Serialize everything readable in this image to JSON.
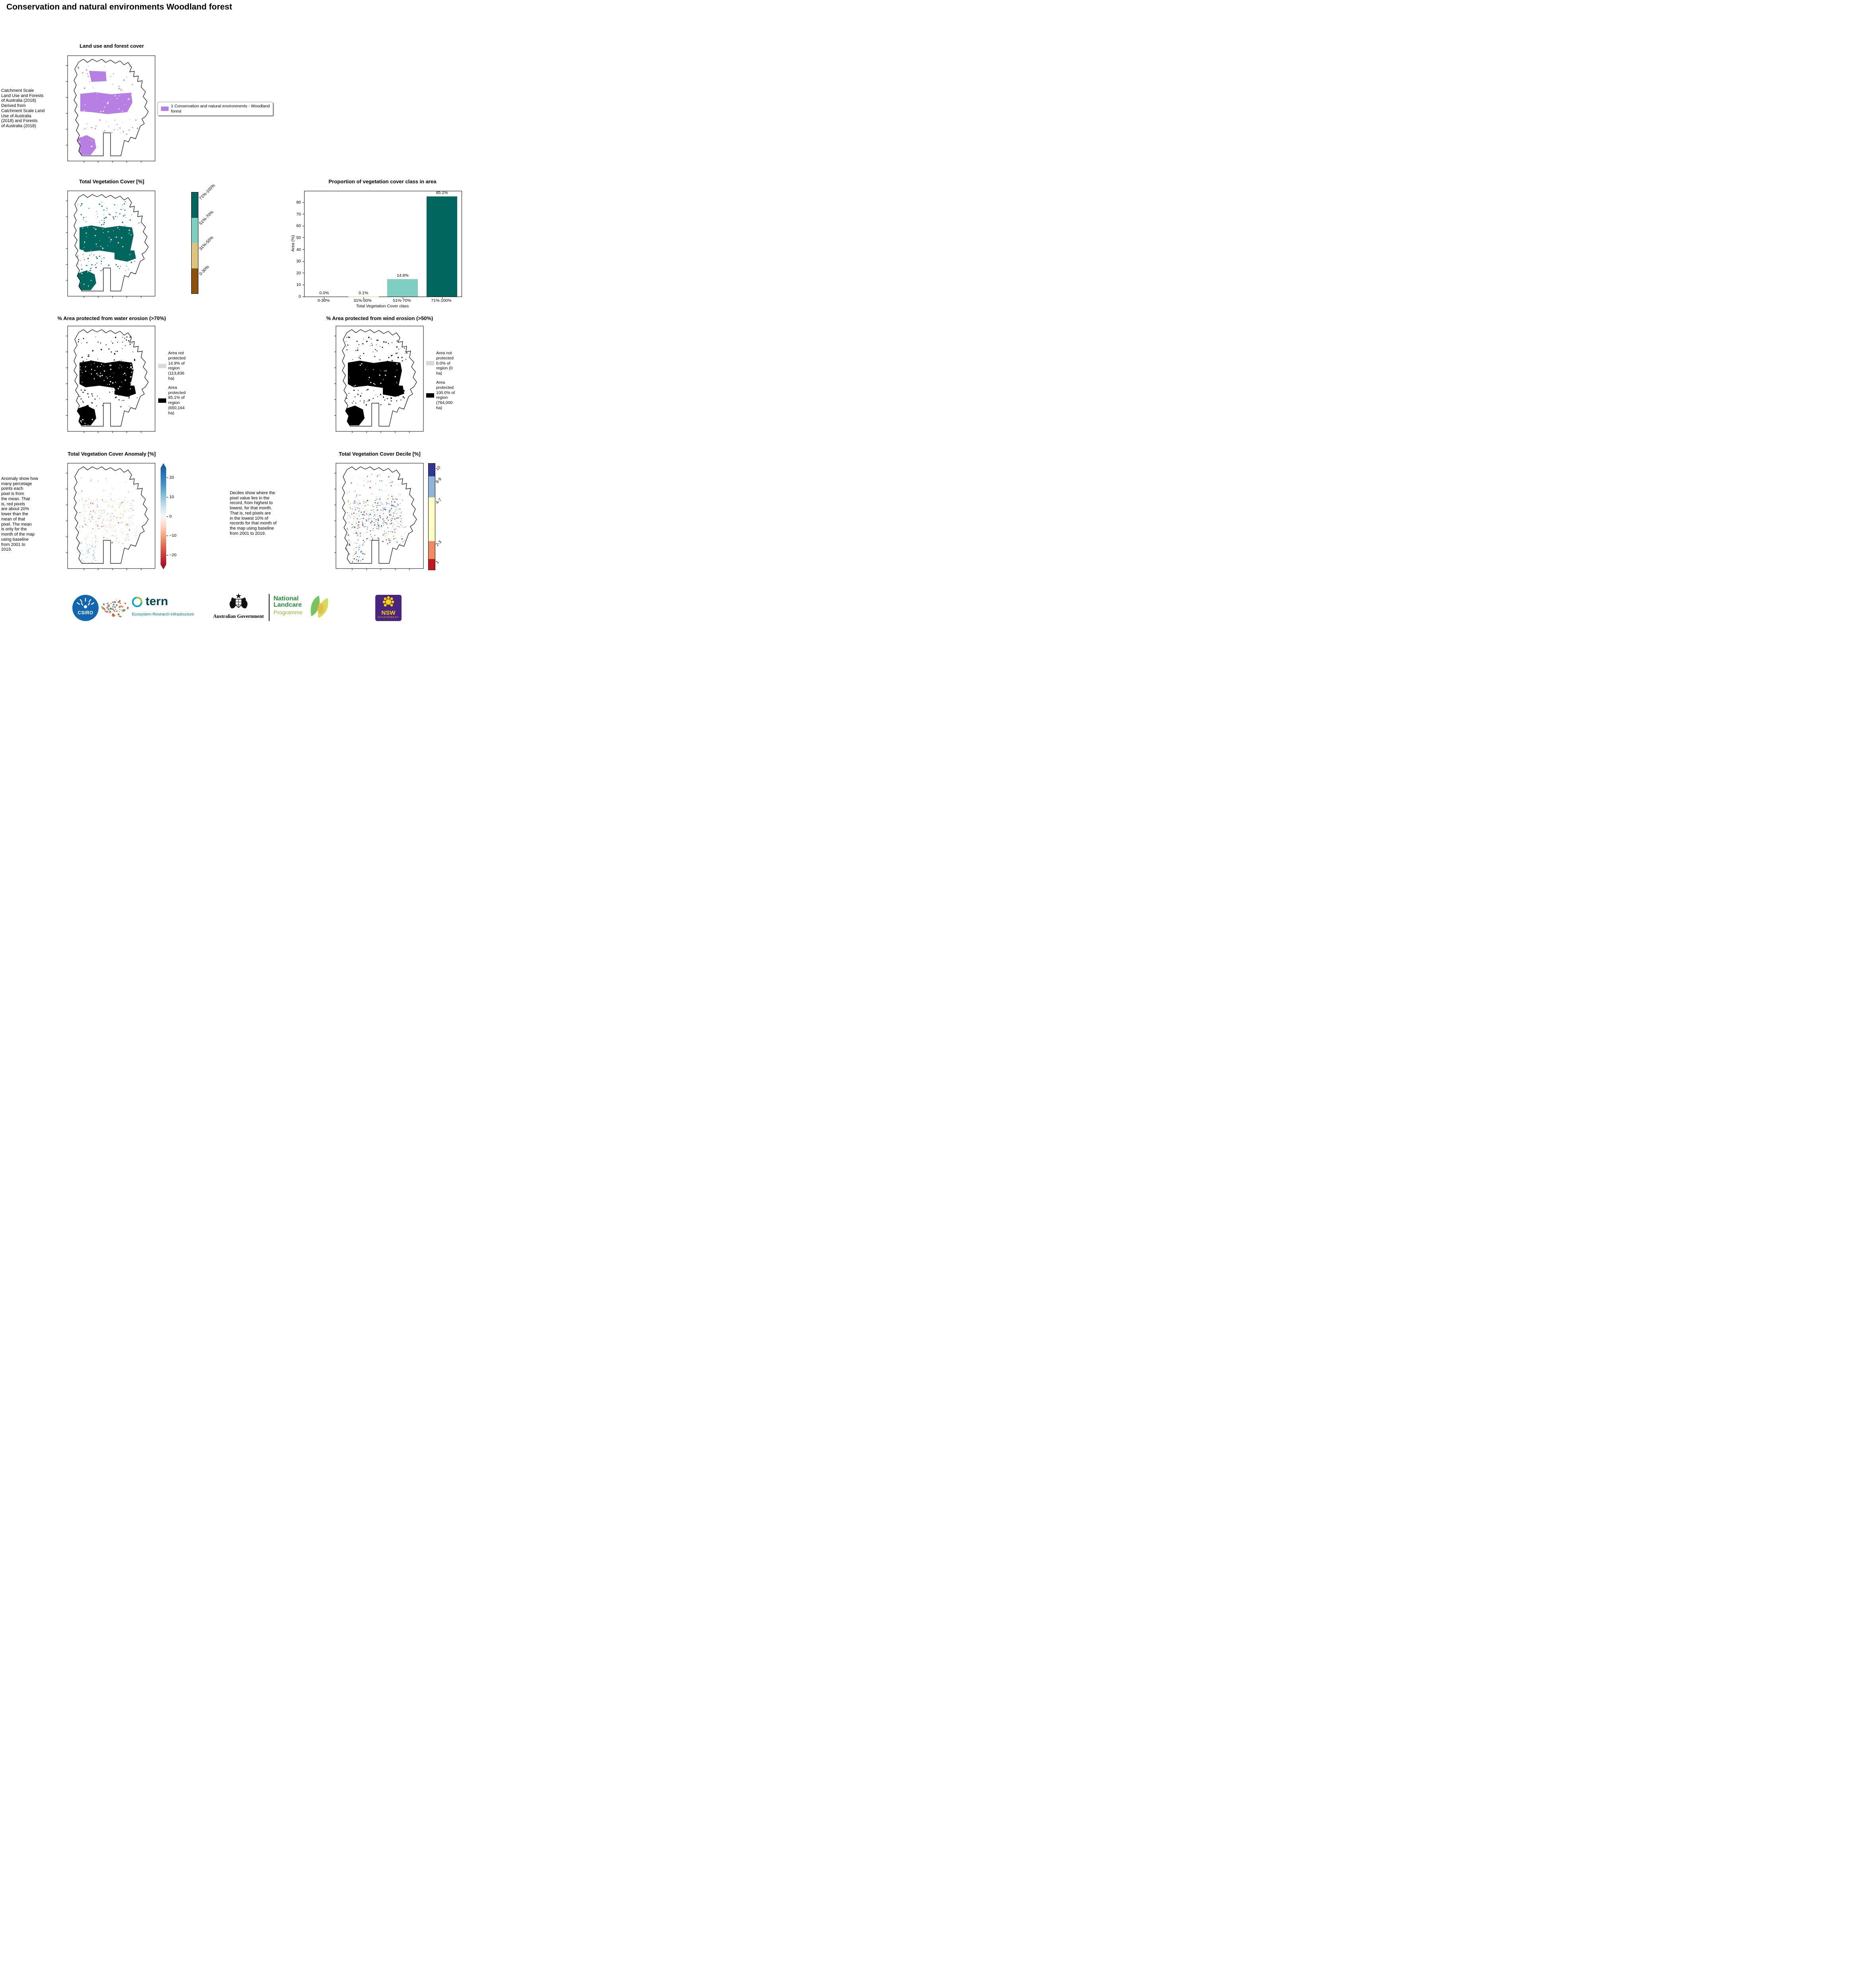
{
  "page": {
    "title": "Conservation and natural environments Woodland forest"
  },
  "land_use": {
    "title": "Land use and forest cover",
    "side_note": " Catchment Scale\nLand Use and Forests\nof Australia (2018)\nDerived from\nCatchment Scale Land\nUse of Australia\n(2018) and Forests\nof Australia (2018)",
    "legend_label": "1 Conservation and natural environments - Woodland\nforest",
    "legend_color": "#b77fe3"
  },
  "veg_cover": {
    "title": "Total Vegetation Cover [%]",
    "colorbar": [
      {
        "label": "71%-100%",
        "color": "#01665e"
      },
      {
        "label": "51%-70%",
        "color": "#80cdc1"
      },
      {
        "label": "31%-50%",
        "color": "#dfc27d"
      },
      {
        "label": "0-30%",
        "color": "#8c510a"
      }
    ]
  },
  "chart_data": {
    "type": "bar",
    "title": "Proportion of vegetation cover class in area",
    "xlabel": "Total Vegetation Cover class",
    "ylabel": "Area (%)",
    "categories": [
      "0-30%",
      "31%-50%",
      "51%-70%",
      "71%-100%"
    ],
    "values": [
      0.0,
      0.1,
      14.8,
      85.1
    ],
    "bar_labels": [
      "0.0%",
      "0.1%",
      "14.8%",
      "85.1%"
    ],
    "colors": [
      "#8c510a",
      "#dfc27d",
      "#80cdc1",
      "#01665e"
    ],
    "ylim": [
      0,
      89.4
    ],
    "yticks": [
      0,
      10,
      20,
      30,
      40,
      50,
      60,
      70,
      80
    ],
    "grid": false,
    "legend_position": "none"
  },
  "water_erosion": {
    "title": "% Area protected from water erosion (>70%)",
    "legend": [
      {
        "color": "#d9d9d9",
        "label": "Area not\nprotected\n14.9% of\nregion\n(113,836\nha)"
      },
      {
        "color": "#000000",
        "label": "Area\nprotected\n85.1% of\nregion\n(650,164\nha)"
      }
    ]
  },
  "wind_erosion": {
    "title": "% Area protected from wind erosion (>50%)",
    "legend": [
      {
        "color": "#d9d9d9",
        "label": "Area not\nprotected\n0.0% of\nregion (0\nha)"
      },
      {
        "color": "#000000",
        "label": "Area\nprotected\n100.0% of\nregion\n(764,000\nha)"
      }
    ]
  },
  "anomaly": {
    "title": "Total Vegetation Cover Anomaly [%]",
    "side_note": "Anomaly show how\nmany percetage\npoints each\npixel is from\nthe mean. That\nis, red pixels\nare about 20%\nlower than the\nmean of that\npixel. The mean\nis only for the\nmonth of the map\nusing baseline\nfrom 2001 to\n2019.",
    "colorbar_ticks": [
      "20",
      "10",
      "0",
      "−10",
      "−20"
    ],
    "colorbar_colors_top_to_bottom": [
      "#2166ac",
      "#4393c3",
      "#92c5de",
      "#d1e5f0",
      "#f7f7f7",
      "#fddbc7",
      "#f4a582",
      "#d6604d",
      "#b2182b"
    ]
  },
  "decile": {
    "title": "Total Vegetation Cover Decile [%]",
    "side_note": "Deciles show where the\npixel value lies in the\nrecord, from highest to\nlowest, for that month.\nThat is, red pixels are\nin the lowest 10% of\nrecords for that month of\nthe map using baseline\nfrom 2001 to 2019.",
    "colorbar": [
      {
        "label": "10",
        "color": "#313695"
      },
      {
        "label": "8-9",
        "color": "#8fb3d9"
      },
      {
        "label": "4-7",
        "color": "#ffffbf"
      },
      {
        "label": "2-3",
        "color": "#ef8a62"
      },
      {
        "label": "1",
        "color": "#c5161d"
      }
    ]
  },
  "footer": {
    "csiro": "CSIRO",
    "tern": "tern",
    "tern_tagline": "Ecosystem Research Infrastructure",
    "aus_gov": "Australian Government",
    "landcare_line1": "National",
    "landcare_line2": "Landcare",
    "landcare_line3": "Programme",
    "nsw": "NSW",
    "nsw_sub": "GOVERNMENT"
  }
}
